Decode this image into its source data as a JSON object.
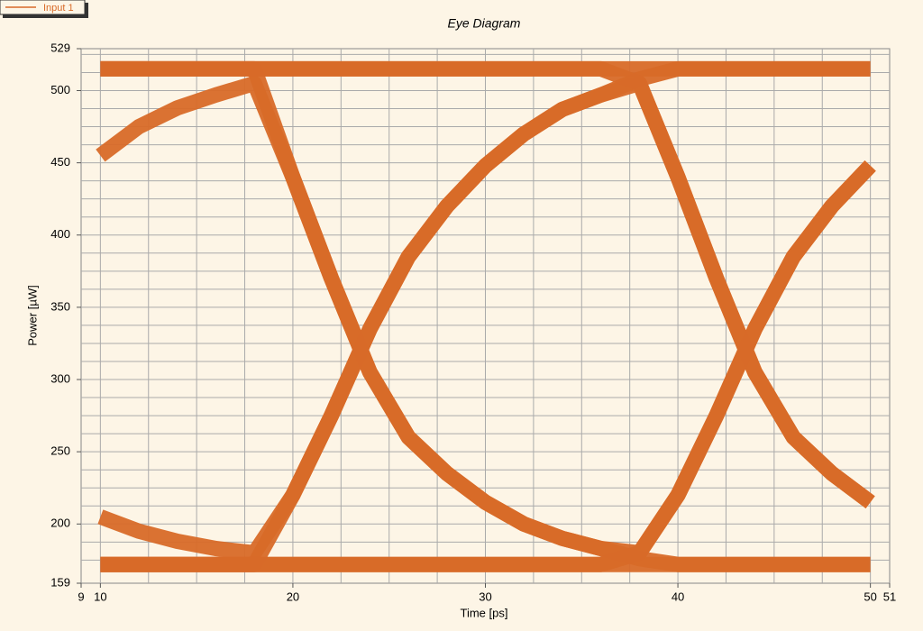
{
  "chart_data": {
    "type": "eye",
    "title": "Eye Diagram",
    "x_label": "Time [ps]",
    "y_label": "Power [µW]",
    "xlim": [
      9,
      51
    ],
    "ylim": [
      159,
      529
    ],
    "xticks": [
      9,
      10,
      20,
      30,
      40,
      50,
      51
    ],
    "yticks": [
      159,
      200,
      250,
      300,
      350,
      400,
      450,
      500,
      529
    ],
    "grid": true,
    "xgrid": [
      10,
      12.5,
      15,
      17.5,
      20,
      22.5,
      25,
      27.5,
      30,
      32.5,
      35,
      37.5,
      40,
      42.5,
      45,
      47.5,
      50
    ],
    "ygrid": [
      175,
      187.5,
      200,
      212.5,
      225,
      237.5,
      250,
      262.5,
      275,
      287.5,
      300,
      312.5,
      325,
      337.5,
      350,
      362.5,
      375,
      387.5,
      400,
      412.5,
      425,
      437.5,
      450,
      462.5,
      475,
      487.5,
      500,
      512.5,
      525
    ],
    "legend": "top-left",
    "x": [
      10,
      12,
      14,
      16,
      18,
      20,
      22,
      24,
      26,
      28,
      30,
      32,
      34,
      36,
      38,
      40,
      42,
      44,
      46,
      48,
      50
    ],
    "series": [
      {
        "name": "Input 1",
        "color": "#d86a28",
        "traces": [
          [
            455,
            475,
            488,
            497,
            505,
            440,
            370,
            305,
            260,
            235,
            215,
            200,
            190,
            183,
            180,
            220,
            275,
            335,
            385,
            420,
            448
          ],
          [
            205,
            195,
            188,
            183,
            180,
            220,
            275,
            335,
            385,
            420,
            448,
            470,
            487,
            497,
            505,
            440,
            370,
            305,
            260,
            235,
            215
          ],
          [
            515,
            515,
            515,
            515,
            515,
            440,
            370,
            305,
            260,
            235,
            215,
            200,
            190,
            183,
            176,
            172,
            172,
            172,
            172,
            172,
            172
          ],
          [
            172,
            172,
            172,
            172,
            172,
            220,
            275,
            335,
            385,
            420,
            448,
            470,
            487,
            497,
            508,
            515,
            515,
            515,
            515,
            515,
            515
          ],
          [
            515,
            515,
            515,
            515,
            515,
            515,
            515,
            515,
            515,
            515,
            515,
            515,
            515,
            515,
            515,
            515,
            515,
            515,
            515,
            515,
            515
          ],
          [
            172,
            172,
            172,
            172,
            172,
            172,
            172,
            172,
            172,
            172,
            172,
            172,
            172,
            172,
            172,
            172,
            172,
            172,
            172,
            172,
            172
          ],
          [
            515,
            515,
            515,
            515,
            515,
            515,
            515,
            515,
            515,
            515,
            515,
            515,
            515,
            515,
            505,
            440,
            370,
            305,
            260,
            235,
            215
          ],
          [
            172,
            172,
            172,
            172,
            172,
            172,
            172,
            172,
            172,
            172,
            172,
            172,
            172,
            172,
            180,
            220,
            275,
            335,
            385,
            420,
            448
          ]
        ]
      }
    ]
  }
}
